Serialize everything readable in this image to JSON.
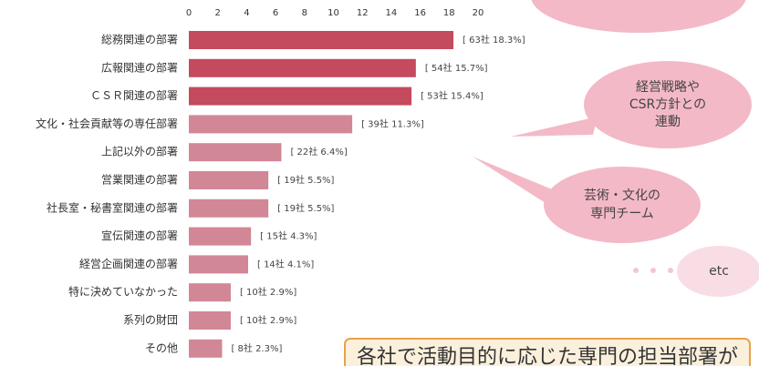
{
  "chart_data": {
    "type": "bar",
    "orientation": "horizontal",
    "categories": [
      "総務関連の部署",
      "広報関連の部署",
      "ＣＳＲ関連の部署",
      "文化・社会貢献等の専任部署",
      "上記以外の部署",
      "営業関連の部署",
      "社長室・秘書室関連の部署",
      "宣伝関連の部署",
      "経営企画関連の部署",
      "特に決めていなかった",
      "系列の財団",
      "その他"
    ],
    "values": [
      18.3,
      15.7,
      15.4,
      11.3,
      6.4,
      5.5,
      5.5,
      4.3,
      4.1,
      2.9,
      2.9,
      2.3
    ],
    "value_labels": [
      "[ 63社 18.3%]",
      "[ 54社 15.7%]",
      "[ 53社 15.4%]",
      "[ 39社 11.3%]",
      "[ 22社 6.4%]",
      "[ 19社 5.5%]",
      "[ 19社 5.5%]",
      "[ 15社 4.3%]",
      "[ 14社 4.1%]",
      "[ 10社 2.9%]",
      "[ 10社 2.9%]",
      "[ 8社 2.3%]"
    ],
    "colors": [
      "#c44a5e",
      "#c44a5e",
      "#c44a5e",
      "#d28796",
      "#d28796",
      "#d28796",
      "#d28796",
      "#d28796",
      "#d28796",
      "#d28796",
      "#d28796",
      "#d28796"
    ],
    "xlim": [
      0,
      20
    ],
    "xticks": [
      0,
      2,
      4,
      6,
      8,
      10,
      12,
      14,
      16,
      18,
      20
    ],
    "grid": false,
    "callouts": [
      [
        "経営戦略や",
        "CSR方針との",
        "連動"
      ],
      [
        "芸術・文化の",
        "専門チーム"
      ],
      [
        "etc"
      ]
    ],
    "footer_text": "各社で活動目的に応じた専門の担当部署が"
  }
}
